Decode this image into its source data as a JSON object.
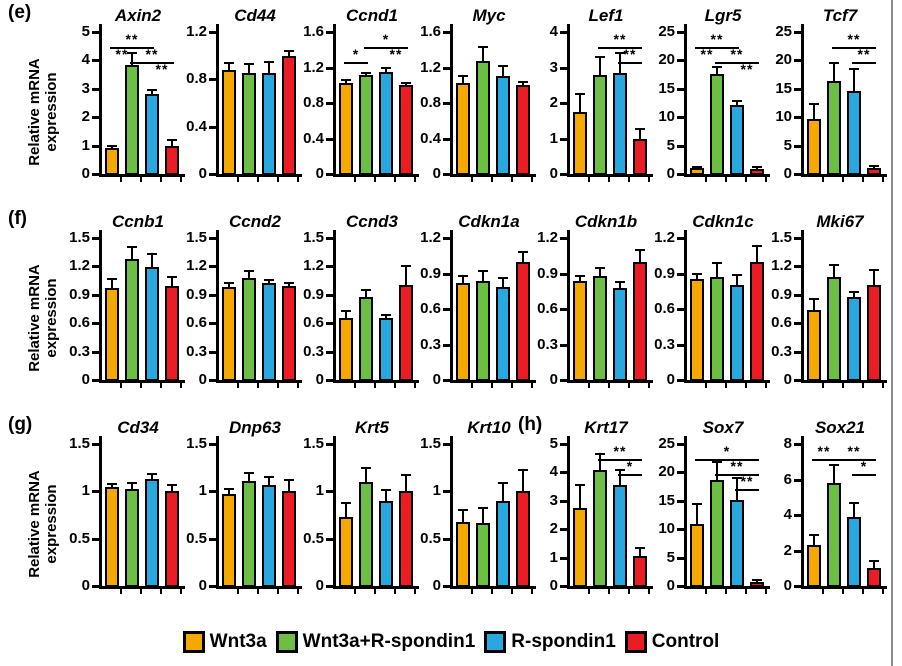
{
  "figure": {
    "ylabel": "Relative mRNA\nexpression",
    "legend": [
      {
        "label": "Wnt3a",
        "color": "#F5A800"
      },
      {
        "label": "Wnt3a+R-spondin1",
        "color": "#6CBE45"
      },
      {
        "label": "R-spondin1",
        "color": "#29A8E0"
      },
      {
        "label": "Control",
        "color": "#EC1C24"
      }
    ],
    "bar_outline": "#000000",
    "background": "#FFFFFF"
  },
  "chart_data": {
    "type": "bar",
    "categories": [
      "Wnt3a",
      "Wnt3a+R-spondin1",
      "R-spondin1",
      "Control"
    ],
    "value_note": "relative mRNA expression, mean + SD",
    "rows": [
      {
        "panel": "(e)",
        "charts": [
          {
            "title": "Axin2",
            "ymax": 5,
            "yticks": [
              "0",
              "1",
              "2",
              "3",
              "4",
              "5"
            ],
            "values": [
              0.9,
              3.85,
              2.8,
              1.0
            ],
            "errors": [
              0.08,
              0.4,
              0.15,
              0.2
            ],
            "sig": [
              {
                "label": "**",
                "from": 1,
                "to": 3,
                "row": 0
              },
              {
                "label": "**",
                "pos": 1.5,
                "row": 1
              },
              {
                "label": "**",
                "from": 2,
                "to": 4,
                "row": 1
              },
              {
                "label": "**",
                "pos": 3.5,
                "row": 2
              }
            ]
          },
          {
            "title": "Cd44",
            "ymax": 1.2,
            "yticks": [
              "0",
              "0.4",
              "0.8",
              "1.2"
            ],
            "values": [
              0.88,
              0.85,
              0.85,
              1.0
            ],
            "errors": [
              0.06,
              0.08,
              0.1,
              0.04
            ],
            "sig": []
          },
          {
            "title": "Ccnd1",
            "ymax": 1.6,
            "yticks": [
              "0",
              "0.4",
              "0.8",
              "1.2",
              "1.6"
            ],
            "values": [
              1.02,
              1.12,
              1.15,
              1.0
            ],
            "errors": [
              0.04,
              0.02,
              0.04,
              0.03
            ],
            "sig": [
              {
                "label": "*",
                "from": 2,
                "to": 4,
                "row": 0
              },
              {
                "label": "*",
                "from": 1,
                "to": 2,
                "row": 1
              },
              {
                "label": "**",
                "pos": 3.5,
                "row": 1
              }
            ]
          },
          {
            "title": "Myc",
            "ymax": 1.6,
            "yticks": [
              "0",
              "0.4",
              "0.8",
              "1.2",
              "1.6"
            ],
            "values": [
              1.03,
              1.27,
              1.1,
              1.0
            ],
            "errors": [
              0.07,
              0.16,
              0.12,
              0.04
            ],
            "sig": []
          },
          {
            "title": "Lef1",
            "ymax": 4,
            "yticks": [
              "0",
              "1",
              "2",
              "3",
              "4"
            ],
            "values": [
              1.75,
              2.8,
              2.85,
              1.0
            ],
            "errors": [
              0.5,
              0.5,
              0.55,
              0.27
            ],
            "sig": [
              {
                "label": "**",
                "from": 2,
                "to": 4,
                "row": 0
              },
              {
                "label": "**",
                "from": 3,
                "to": 4,
                "row": 1
              }
            ]
          },
          {
            "title": "Lgr5",
            "ymax": 25,
            "yticks": [
              "0",
              "5",
              "10",
              "15",
              "20",
              "25"
            ],
            "values": [
              1.0,
              17.6,
              12.2,
              0.9
            ],
            "errors": [
              0.3,
              1.2,
              0.6,
              0.3
            ],
            "sig": [
              {
                "label": "**",
                "from": 1,
                "to": 3,
                "row": 0
              },
              {
                "label": "**",
                "pos": 1.5,
                "row": 1
              },
              {
                "label": "**",
                "from": 2,
                "to": 4,
                "row": 1
              },
              {
                "label": "**",
                "pos": 3.5,
                "row": 2
              }
            ]
          },
          {
            "title": "Tcf7",
            "ymax": 25,
            "yticks": [
              "0",
              "5",
              "10",
              "15",
              "20",
              "25"
            ],
            "values": [
              9.7,
              16.3,
              14.6,
              1.0
            ],
            "errors": [
              2.6,
              3.2,
              3.9,
              0.4
            ],
            "sig": [
              {
                "label": "**",
                "from": 2,
                "to": 4,
                "row": 0
              },
              {
                "label": "**",
                "from": 3,
                "to": 4,
                "row": 1
              }
            ]
          }
        ]
      },
      {
        "panel": "(f)",
        "charts": [
          {
            "title": "Ccnb1",
            "ymax": 1.5,
            "yticks": [
              "0",
              "0.3",
              "0.6",
              "0.9",
              "1.2",
              "1.5"
            ],
            "values": [
              0.97,
              1.28,
              1.19,
              0.99
            ],
            "errors": [
              0.1,
              0.13,
              0.14,
              0.1
            ],
            "sig": []
          },
          {
            "title": "Ccnd2",
            "ymax": 1.5,
            "yticks": [
              "0",
              "0.3",
              "0.6",
              "0.9",
              "1.2",
              "1.5"
            ],
            "values": [
              0.98,
              1.08,
              1.02,
              0.99
            ],
            "errors": [
              0.04,
              0.07,
              0.04,
              0.03
            ],
            "sig": []
          },
          {
            "title": "Ccnd3",
            "ymax": 1.5,
            "yticks": [
              "0",
              "0.3",
              "0.6",
              "0.9",
              "1.2",
              "1.5"
            ],
            "values": [
              0.66,
              0.88,
              0.65,
              1.0
            ],
            "errors": [
              0.07,
              0.07,
              0.04,
              0.2
            ],
            "sig": []
          },
          {
            "title": "Cdkn1a",
            "ymax": 1.2,
            "yticks": [
              "0",
              "0.3",
              "0.6",
              "0.9",
              "1.2"
            ],
            "values": [
              0.82,
              0.84,
              0.79,
              1.0
            ],
            "errors": [
              0.06,
              0.08,
              0.07,
              0.08
            ],
            "sig": []
          },
          {
            "title": "Cdkn1b",
            "ymax": 1.2,
            "yticks": [
              "0",
              "0.3",
              "0.6",
              "0.9",
              "1.2"
            ],
            "values": [
              0.84,
              0.88,
              0.78,
              1.0
            ],
            "errors": [
              0.04,
              0.07,
              0.05,
              0.1
            ],
            "sig": []
          },
          {
            "title": "Cdkn1c",
            "ymax": 1.2,
            "yticks": [
              "0",
              "0.3",
              "0.6",
              "0.9",
              "1.2"
            ],
            "values": [
              0.85,
              0.87,
              0.8,
              1.0
            ],
            "errors": [
              0.05,
              0.12,
              0.09,
              0.13
            ],
            "sig": []
          },
          {
            "title": "Mki67",
            "ymax": 1.5,
            "yticks": [
              "0",
              "0.3",
              "0.6",
              "0.9",
              "1.2",
              "1.5"
            ],
            "values": [
              0.74,
              1.09,
              0.88,
              1.0
            ],
            "errors": [
              0.12,
              0.13,
              0.05,
              0.16
            ],
            "sig": []
          }
        ]
      },
      {
        "panel": "(g)",
        "charts": [
          {
            "title": "Cd34",
            "ymax": 1.5,
            "yticks": [
              "0",
              "0.5",
              "1",
              "1.5"
            ],
            "values": [
              1.05,
              1.02,
              1.13,
              1.0
            ],
            "errors": [
              0.03,
              0.07,
              0.05,
              0.07
            ],
            "sig": []
          },
          {
            "title": "Dnp63",
            "ymax": 1.5,
            "yticks": [
              "0",
              "0.5",
              "1",
              "1.5"
            ],
            "values": [
              0.97,
              1.11,
              1.07,
              1.0
            ],
            "errors": [
              0.05,
              0.08,
              0.08,
              0.12
            ],
            "sig": []
          },
          {
            "title": "Krt5",
            "ymax": 1.5,
            "yticks": [
              "0",
              "0.5",
              "1",
              "1.5"
            ],
            "values": [
              0.73,
              1.1,
              0.9,
              1.0
            ],
            "errors": [
              0.15,
              0.15,
              0.11,
              0.17
            ],
            "sig": []
          },
          {
            "title": "Krt10",
            "ymax": 1.5,
            "yticks": [
              "0",
              "0.5",
              "1",
              "1.5"
            ],
            "values": [
              0.68,
              0.67,
              0.9,
              1.0
            ],
            "errors": [
              0.12,
              0.15,
              0.19,
              0.23
            ],
            "sig": []
          },
          {
            "title": "Krt17",
            "panel": "(h)",
            "ymax": 5,
            "yticks": [
              "0",
              "1",
              "2",
              "3",
              "4",
              "5"
            ],
            "values": [
              2.75,
              4.1,
              3.55,
              1.05
            ],
            "errors": [
              0.8,
              0.55,
              0.55,
              0.3
            ],
            "sig": [
              {
                "label": "**",
                "from": 2,
                "to": 4,
                "row": 0
              },
              {
                "label": "*",
                "from": 3,
                "to": 4,
                "row": 1
              }
            ]
          },
          {
            "title": "Sox7",
            "ymax": 25,
            "yticks": [
              "0",
              "5",
              "10",
              "15",
              "20",
              "25"
            ],
            "values": [
              11,
              18.7,
              15.2,
              0.7
            ],
            "errors": [
              3.4,
              3.1,
              3.8,
              0.3
            ],
            "sig": [
              {
                "label": "*",
                "from": 1,
                "to": 4,
                "row": 0
              },
              {
                "label": "**",
                "from": 2,
                "to": 4,
                "row": 1
              },
              {
                "label": "**",
                "from": 3,
                "to": 4,
                "row": 2
              }
            ]
          },
          {
            "title": "Sox21",
            "ymax": 8,
            "yticks": [
              "0",
              "2",
              "4",
              "6",
              "8"
            ],
            "values": [
              2.3,
              5.8,
              3.9,
              1.0
            ],
            "errors": [
              0.55,
              1.0,
              0.75,
              0.4
            ],
            "sig": [
              {
                "label": "**",
                "from": 1,
                "to": 2,
                "row": 0
              },
              {
                "label": "**",
                "from": 2,
                "to": 4,
                "row": 0
              },
              {
                "label": "*",
                "from": 3,
                "to": 4,
                "row": 1
              }
            ]
          }
        ]
      }
    ]
  }
}
